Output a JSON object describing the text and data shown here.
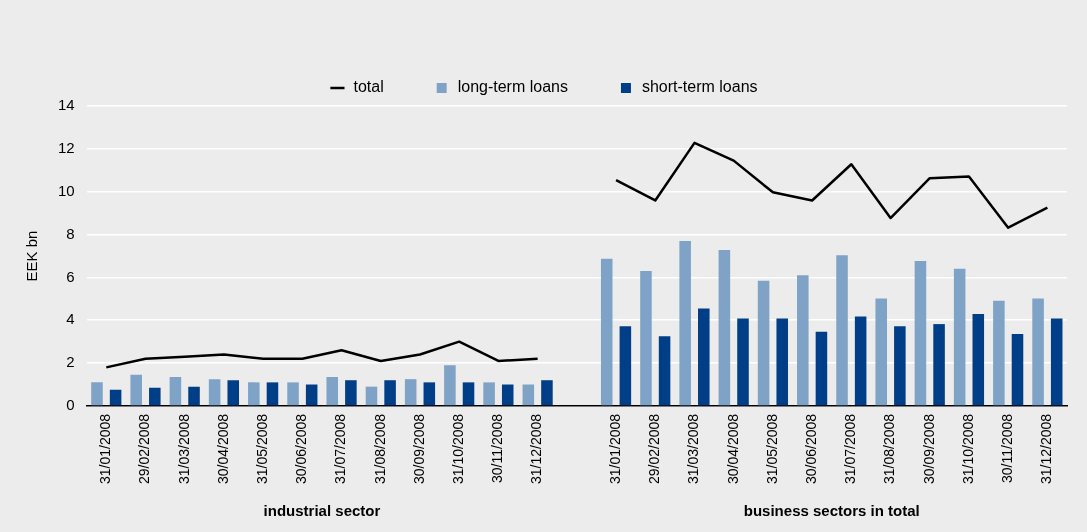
{
  "chart_data": {
    "type": "bar",
    "ylabel": "EEK bn",
    "categories": [
      "31/01/2008",
      "29/02/2008",
      "31/03/2008",
      "30/04/2008",
      "31/05/2008",
      "30/06/2008",
      "31/07/2008",
      "31/08/2008",
      "30/09/2008",
      "31/10/2008",
      "30/11/2008",
      "31/12/2008",
      null,
      "31/01/2008",
      "29/02/2008",
      "31/03/2008",
      "30/04/2008",
      "31/05/2008",
      "30/06/2008",
      "31/07/2008",
      "31/08/2008",
      "30/09/2008",
      "31/10/2008",
      "30/11/2008",
      "31/12/2008"
    ],
    "series": [
      {
        "name": "long-term loans",
        "color": "#7fa3c6",
        "values": [
          1.1,
          1.45,
          1.35,
          1.25,
          1.1,
          1.1,
          1.35,
          0.9,
          1.25,
          1.9,
          1.1,
          1.0,
          null,
          6.87,
          6.3,
          7.7,
          7.28,
          5.84,
          6.1,
          7.03,
          5.01,
          6.77,
          6.4,
          4.91,
          5.01
        ]
      },
      {
        "name": "short-term loans",
        "color": "#003f87",
        "values": [
          0.75,
          0.85,
          0.9,
          1.2,
          1.1,
          1.0,
          1.2,
          1.2,
          1.1,
          1.1,
          1.0,
          1.2,
          null,
          3.72,
          3.25,
          4.55,
          4.08,
          4.08,
          3.46,
          4.18,
          3.72,
          3.82,
          4.29,
          3.36,
          4.08
        ]
      },
      {
        "name": "total",
        "type": "line",
        "color": "#000000",
        "values": [
          1.8,
          2.2,
          2.3,
          2.4,
          2.2,
          2.2,
          2.6,
          2.1,
          2.4,
          3.0,
          2.1,
          2.2,
          null,
          10.54,
          9.59,
          12.28,
          11.45,
          9.97,
          9.59,
          11.28,
          8.77,
          10.63,
          10.71,
          8.32,
          9.26
        ]
      }
    ],
    "ylim": [
      0,
      14
    ],
    "yticks": [
      0,
      2,
      4,
      6,
      8,
      10,
      12,
      14
    ],
    "grid": "y",
    "legend": "top",
    "marker": "none",
    "line_style": "solid",
    "annotations": [
      "industrial sector",
      "business sectors in total"
    ]
  }
}
